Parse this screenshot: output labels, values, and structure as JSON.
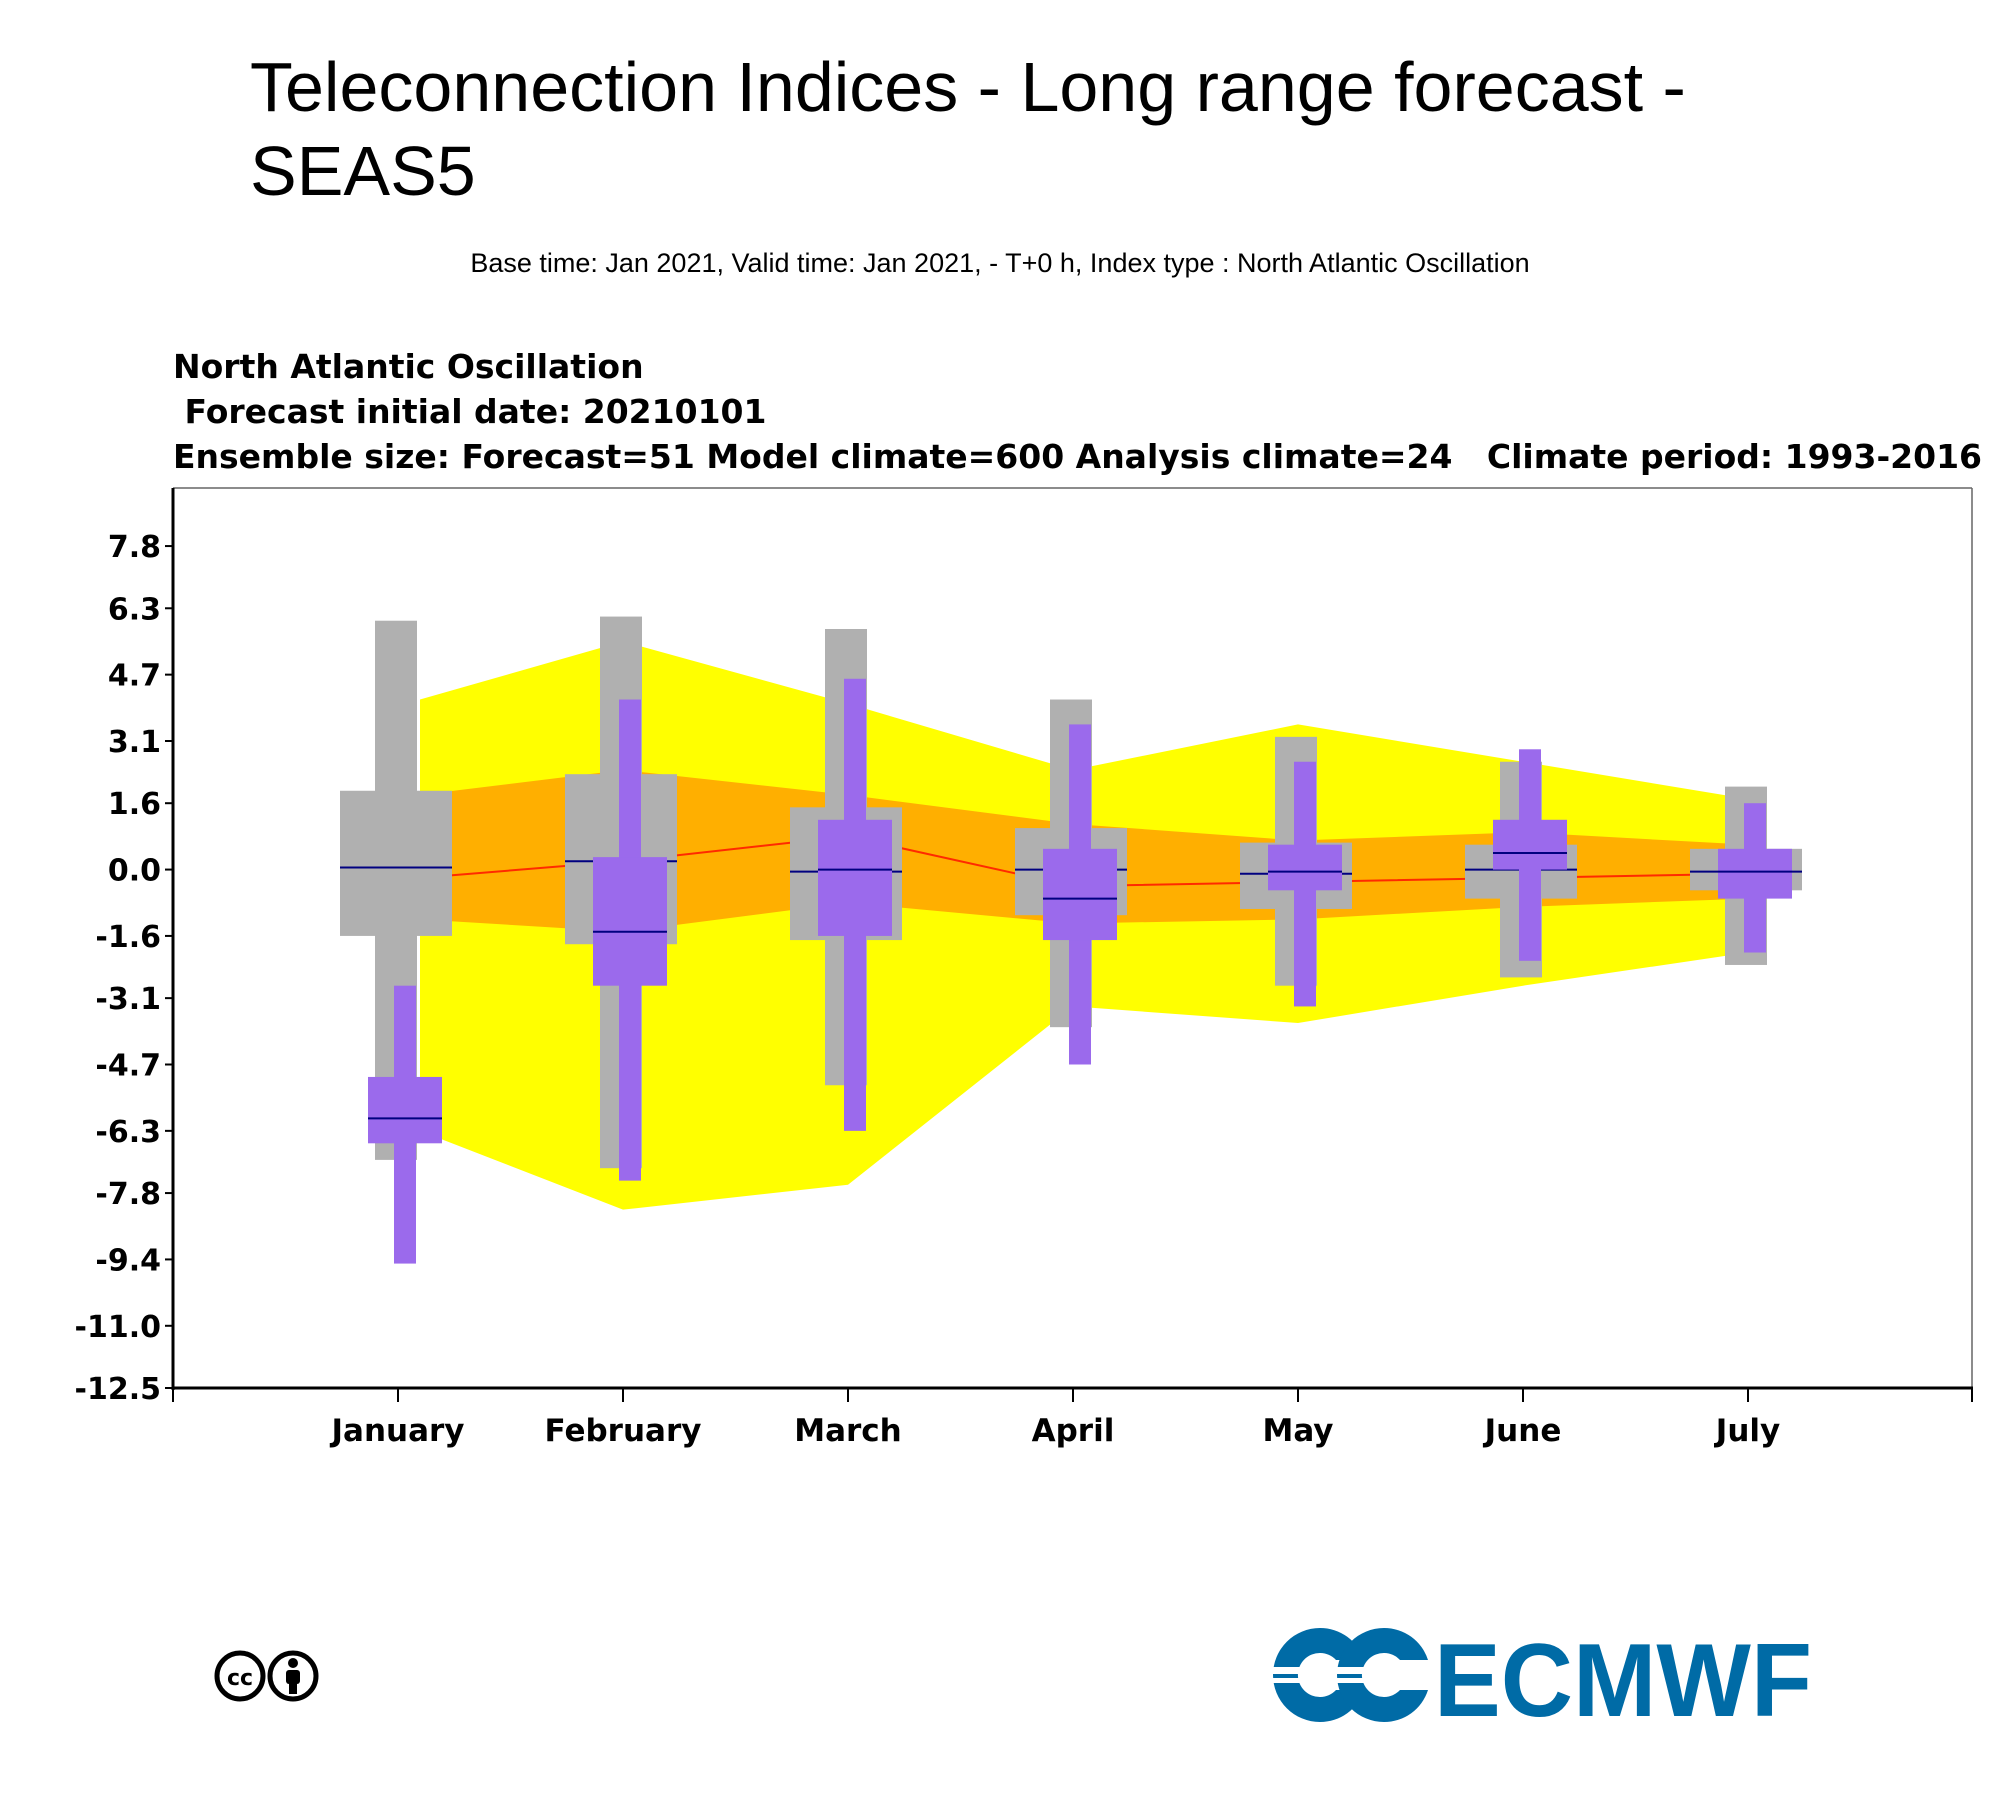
{
  "page": {
    "title": "Teleconnection Indices - Long range forecast - SEAS5",
    "subtitle": "Base time: Jan 2021, Valid time: Jan 2021, - T+0 h, Index type : North Atlantic Oscillation"
  },
  "chart_data": {
    "type": "box",
    "title_lines": [
      "North Atlantic Oscillation",
      " Forecast initial date: 20210101",
      "Ensemble size: Forecast=51 Model climate=600 Analysis climate=24   Climate period: 1993-2016"
    ],
    "categories": [
      "January",
      "February",
      "March",
      "April",
      "May",
      "June",
      "July"
    ],
    "y_ticks": [
      7.8,
      6.3,
      4.7,
      3.1,
      1.6,
      0.0,
      -1.6,
      -3.1,
      -4.7,
      -6.3,
      -7.8,
      -9.4,
      -11.0,
      -12.5
    ],
    "y_tick_labels": [
      "7.8",
      "6.3",
      "4.7",
      "3.1",
      "1.6",
      "0.0",
      "-1.6",
      "-3.1",
      "-4.7",
      "-6.3",
      "-7.8",
      "-9.4",
      "-11.0",
      "-12.5"
    ],
    "ylim": [
      -12.5,
      9.2
    ],
    "analysis_climate": {
      "outer_band": {
        "upper": [
          4.1,
          5.5,
          4.0,
          2.4,
          3.5,
          2.6,
          1.7
        ],
        "lower": [
          -6.3,
          -8.2,
          -7.6,
          -3.3,
          -3.7,
          -2.8,
          -2.0
        ]
      },
      "inner_band": {
        "upper": [
          1.8,
          2.4,
          1.8,
          1.1,
          0.7,
          0.9,
          0.6
        ],
        "lower": [
          -1.2,
          -1.5,
          -0.8,
          -1.3,
          -1.2,
          -0.9,
          -0.7
        ]
      },
      "median_line": [
        -0.2,
        0.2,
        0.8,
        -0.4,
        -0.3,
        -0.2,
        -0.1
      ]
    },
    "model_climate": [
      {
        "min": -7.0,
        "q1": -1.6,
        "median": 0.05,
        "q3": 1.9,
        "max": 6.0
      },
      {
        "min": -7.2,
        "q1": -1.8,
        "median": 0.2,
        "q3": 2.3,
        "max": 6.1
      },
      {
        "min": -5.2,
        "q1": -1.7,
        "median": -0.05,
        "q3": 1.5,
        "max": 5.8
      },
      {
        "min": -3.8,
        "q1": -1.1,
        "median": 0.0,
        "q3": 1.0,
        "max": 4.1
      },
      {
        "min": -2.8,
        "q1": -0.95,
        "median": -0.1,
        "q3": 0.65,
        "max": 3.2
      },
      {
        "min": -2.6,
        "q1": -0.7,
        "median": 0.0,
        "q3": 0.6,
        "max": 2.6
      },
      {
        "min": -2.3,
        "q1": -0.5,
        "median": -0.05,
        "q3": 0.5,
        "max": 2.0
      }
    ],
    "forecast": [
      {
        "min": -9.5,
        "q1": -6.6,
        "median": -6.0,
        "q3": -5.0,
        "max": -2.8
      },
      {
        "min": -7.5,
        "q1": -2.8,
        "median": -1.5,
        "q3": 0.3,
        "max": 4.1
      },
      {
        "min": -6.3,
        "q1": -1.6,
        "median": 0.0,
        "q3": 1.2,
        "max": 4.6
      },
      {
        "min": -4.7,
        "q1": -1.7,
        "median": -0.7,
        "q3": 0.5,
        "max": 3.5
      },
      {
        "min": -3.3,
        "q1": -0.5,
        "median": -0.05,
        "q3": 0.6,
        "max": 2.6
      },
      {
        "min": -2.2,
        "q1": 0.0,
        "median": 0.4,
        "q3": 1.2,
        "max": 2.9
      },
      {
        "min": -2.0,
        "q1": -0.7,
        "median": -0.05,
        "q3": 0.5,
        "max": 1.6
      }
    ],
    "colors": {
      "outer_band": "#ffff00",
      "inner_band": "#ffaf00",
      "median_line": "#ff2a00",
      "model_climate": "#b0b0b0",
      "forecast": "#9b6aec",
      "median_tick": "#000080"
    }
  },
  "footer": {
    "cc_text": "cc",
    "logo_text": "ECMWF",
    "logo_color": "#006ba6"
  }
}
